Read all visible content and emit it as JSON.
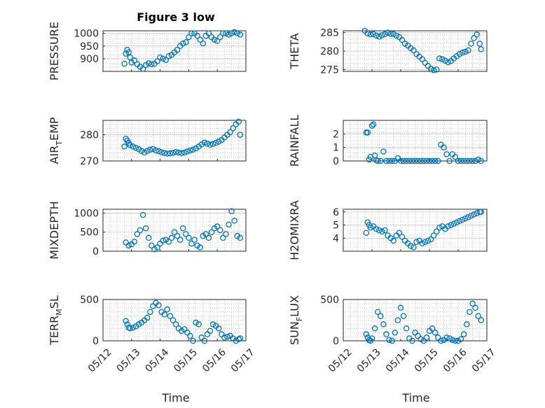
{
  "figure": {
    "title": "Figure 3 low",
    "xlabel": "Time"
  },
  "colors": {
    "marker": "#0072BD",
    "grid": "#b0b0b0",
    "axis": "#262626"
  },
  "chart_data": [
    {
      "type": "scatter",
      "ylabel": "PRESSURE",
      "ylim": [
        850,
        1010
      ],
      "yticks": [
        900,
        950,
        1000
      ],
      "xlim": [
        "05/12",
        "05/17"
      ],
      "xtick_labels": [
        "05/12",
        "05/13",
        "05/14",
        "05/15",
        "05/16",
        "05/17"
      ],
      "x": [
        "05/12 18:00",
        "05/12 19:12",
        "05/12 20:24",
        "05/12 21:36",
        "05/12 22:48",
        "05/13 00:00",
        "05/13 02:24",
        "05/13 04:48",
        "05/13 07:12",
        "05/13 09:36",
        "05/13 12:00",
        "05/13 14:24",
        "05/13 16:48",
        "05/13 19:12",
        "05/13 21:36",
        "05/14 00:00",
        "05/14 02:24",
        "05/14 04:48",
        "05/14 07:12",
        "05/14 09:36",
        "05/14 12:00",
        "05/14 14:24",
        "05/14 16:48",
        "05/14 19:12",
        "05/14 21:36",
        "05/15 00:00",
        "05/15 02:24",
        "05/15 04:48",
        "05/15 07:12",
        "05/15 09:36",
        "05/15 12:00",
        "05/15 14:24",
        "05/15 16:48",
        "05/15 19:12",
        "05/15 21:36",
        "05/16 00:00",
        "05/16 02:24",
        "05/16 04:48",
        "05/16 07:12",
        "05/16 09:36",
        "05/16 12:00",
        "05/16 14:24",
        "05/16 16:48",
        "05/16 19:12"
      ],
      "y": [
        880,
        920,
        935,
        925,
        905,
        885,
        893,
        878,
        868,
        860,
        875,
        882,
        878,
        880,
        890,
        905,
        900,
        895,
        910,
        915,
        925,
        935,
        950,
        960,
        965,
        985,
        1000,
        1000,
        990,
        975,
        960,
        990,
        1000,
        985,
        975,
        970,
        985,
        1000,
        1000,
        995,
        1000,
        1005,
        1000,
        995
      ]
    },
    {
      "type": "scatter",
      "ylabel": "THETA",
      "ylim": [
        274.5,
        285.5
      ],
      "yticks": [
        275,
        280,
        285
      ],
      "xlim": [
        "05/12",
        "05/17"
      ],
      "xtick_labels": [
        "05/12",
        "05/13",
        "05/14",
        "05/15",
        "05/16",
        "05/17"
      ],
      "x": [
        "05/12 18:00",
        "05/12 20:24",
        "05/12 22:48",
        "05/13 01:12",
        "05/13 03:36",
        "05/13 06:00",
        "05/13 08:24",
        "05/13 10:48",
        "05/13 13:12",
        "05/13 15:36",
        "05/13 18:00",
        "05/13 20:24",
        "05/13 22:48",
        "05/14 01:12",
        "05/14 03:36",
        "05/14 06:00",
        "05/14 08:24",
        "05/14 10:48",
        "05/14 13:12",
        "05/14 15:36",
        "05/14 18:00",
        "05/14 20:24",
        "05/14 22:48",
        "05/15 01:12",
        "05/15 03:36",
        "05/15 06:00",
        "05/15 08:24",
        "05/15 10:48",
        "05/15 13:12",
        "05/15 15:36",
        "05/15 18:00",
        "05/15 20:24",
        "05/15 22:48",
        "05/16 01:12",
        "05/16 03:36",
        "05/16 06:00",
        "05/16 08:24",
        "05/16 10:48",
        "05/16 13:12",
        "05/16 15:36",
        "05/16 18:00",
        "05/16 19:12"
      ],
      "y": [
        285.5,
        284.8,
        284.5,
        284.6,
        284.2,
        283.9,
        284.3,
        284.6,
        285.0,
        284.7,
        284.6,
        284.2,
        283.8,
        283.0,
        282.0,
        281.5,
        280.8,
        280.2,
        279.2,
        278.5,
        277.8,
        276.8,
        276.0,
        275.2,
        274.8,
        275.0,
        278.0,
        277.8,
        277.4,
        277.0,
        277.3,
        278.0,
        278.6,
        279.2,
        279.6,
        279.8,
        280.2,
        282.0,
        283.5,
        284.5,
        282.0,
        280.5
      ]
    },
    {
      "type": "scatter",
      "ylabel": "AIR_TEMP",
      "ylim": [
        270,
        285.5
      ],
      "yticks": [
        270,
        280
      ],
      "xlim": [
        "05/12",
        "05/17"
      ],
      "xtick_labels": [
        "05/12",
        "05/13",
        "05/14",
        "05/15",
        "05/16",
        "05/17"
      ],
      "x": [
        "05/12 18:00",
        "05/12 19:12",
        "05/12 20:24",
        "05/12 21:36",
        "05/12 22:48",
        "05/13 01:12",
        "05/13 03:36",
        "05/13 06:00",
        "05/13 08:24",
        "05/13 10:48",
        "05/13 13:12",
        "05/13 15:36",
        "05/13 18:00",
        "05/13 20:24",
        "05/13 22:48",
        "05/14 01:12",
        "05/14 03:36",
        "05/14 06:00",
        "05/14 08:24",
        "05/14 10:48",
        "05/14 13:12",
        "05/14 15:36",
        "05/14 18:00",
        "05/14 20:24",
        "05/14 22:48",
        "05/15 01:12",
        "05/15 03:36",
        "05/15 06:00",
        "05/15 08:24",
        "05/15 10:48",
        "05/15 13:12",
        "05/15 15:36",
        "05/15 18:00",
        "05/15 20:24",
        "05/15 22:48",
        "05/16 01:12",
        "05/16 03:36",
        "05/16 06:00",
        "05/16 08:24",
        "05/16 10:48",
        "05/16 13:12",
        "05/16 15:36",
        "05/16 18:00",
        "05/16 19:12"
      ],
      "y": [
        275.5,
        278.5,
        277.8,
        276.8,
        276.0,
        275.5,
        275.0,
        274.5,
        273.8,
        273.2,
        273.8,
        274.3,
        274.6,
        274.0,
        273.7,
        273.3,
        273.0,
        272.8,
        272.9,
        273.1,
        273.4,
        273.2,
        273.0,
        273.2,
        273.6,
        274.0,
        274.3,
        274.8,
        275.5,
        276.3,
        277.0,
        276.6,
        276.2,
        276.5,
        276.9,
        277.4,
        278.0,
        279.0,
        280.0,
        281.0,
        282.5,
        284.0,
        285.0,
        280.0
      ]
    },
    {
      "type": "scatter",
      "ylabel": "RAINFALL",
      "ylim": [
        0,
        3
      ],
      "yticks": [
        0,
        1,
        2
      ],
      "xlim": [
        "05/12",
        "05/17"
      ],
      "xtick_labels": [
        "05/12",
        "05/13",
        "05/14",
        "05/15",
        "05/16",
        "05/17"
      ],
      "x": [
        "05/12 19:12",
        "05/12 20:24",
        "05/12 21:36",
        "05/12 22:48",
        "05/13 00:00",
        "05/13 01:12",
        "05/13 02:24",
        "05/13 03:36",
        "05/13 04:48",
        "05/13 07:12",
        "05/13 09:36",
        "05/13 12:00",
        "05/13 14:24",
        "05/13 16:48",
        "05/13 19:12",
        "05/13 21:36",
        "05/14 00:00",
        "05/14 02:24",
        "05/14 04:48",
        "05/14 07:12",
        "05/14 09:36",
        "05/14 12:00",
        "05/14 14:24",
        "05/14 16:48",
        "05/14 19:12",
        "05/14 21:36",
        "05/15 00:00",
        "05/15 02:24",
        "05/15 04:48",
        "05/15 07:12",
        "05/15 09:36",
        "05/15 12:00",
        "05/15 14:24",
        "05/15 16:48",
        "05/15 19:12",
        "05/15 21:36",
        "05/16 00:00",
        "05/16 02:24",
        "05/16 04:48",
        "05/16 07:12",
        "05/16 09:36",
        "05/16 12:00",
        "05/16 14:24",
        "05/16 16:48",
        "05/16 19:12"
      ],
      "y": [
        2.1,
        2.1,
        0.1,
        0.3,
        2.6,
        2.7,
        0.4,
        0.05,
        0.0,
        0.0,
        0.7,
        0.0,
        0.0,
        0.0,
        0.0,
        0.2,
        0.0,
        0.0,
        0.0,
        0.0,
        0.0,
        0.0,
        0.0,
        0.0,
        0.0,
        0.0,
        0.0,
        0.0,
        0.0,
        0.0,
        1.2,
        1.0,
        0.5,
        0.0,
        0.5,
        0.3,
        0.0,
        0.0,
        0.0,
        0.0,
        0.0,
        0.0,
        0.0,
        0.1,
        0.0
      ]
    },
    {
      "type": "scatter",
      "ylabel": "MIXDEPTH",
      "ylim": [
        0,
        1100
      ],
      "yticks": [
        0,
        500,
        1000
      ],
      "xlim": [
        "05/12",
        "05/17"
      ],
      "xtick_labels": [
        "05/12",
        "05/13",
        "05/14",
        "05/15",
        "05/16",
        "05/17"
      ],
      "x": [
        "05/12 19:12",
        "05/12 21:36",
        "05/13 00:00",
        "05/13 02:24",
        "05/13 04:48",
        "05/13 07:12",
        "05/13 09:36",
        "05/13 12:00",
        "05/13 14:24",
        "05/13 16:48",
        "05/13 19:12",
        "05/13 21:36",
        "05/14 00:00",
        "05/14 02:24",
        "05/14 04:48",
        "05/14 07:12",
        "05/14 09:36",
        "05/14 12:00",
        "05/14 14:24",
        "05/14 16:48",
        "05/14 19:12",
        "05/14 21:36",
        "05/15 00:00",
        "05/15 02:24",
        "05/15 04:48",
        "05/15 07:12",
        "05/15 09:36",
        "05/15 12:00",
        "05/15 14:24",
        "05/15 16:48",
        "05/15 19:12",
        "05/15 21:36",
        "05/16 00:00",
        "05/16 02:24",
        "05/16 04:48",
        "05/16 07:12",
        "05/16 09:36",
        "05/16 12:00",
        "05/16 14:24",
        "05/16 16:48",
        "05/16 19:12"
      ],
      "y": [
        230,
        150,
        180,
        250,
        450,
        550,
        950,
        600,
        350,
        150,
        50,
        100,
        200,
        280,
        300,
        250,
        350,
        500,
        400,
        300,
        600,
        450,
        350,
        200,
        300,
        150,
        100,
        400,
        450,
        350,
        500,
        600,
        650,
        550,
        350,
        450,
        700,
        1050,
        800,
        400,
        350
      ]
    },
    {
      "type": "scatter",
      "ylabel": "H2OMIXRA",
      "ylim": [
        3,
        6.2
      ],
      "yticks": [
        4,
        5,
        6
      ],
      "xlim": [
        "05/12",
        "05/17"
      ],
      "xtick_labels": [
        "05/12",
        "05/13",
        "05/14",
        "05/15",
        "05/16",
        "05/17"
      ],
      "x": [
        "05/12 19:12",
        "05/12 20:24",
        "05/12 21:36",
        "05/12 22:48",
        "05/13 01:12",
        "05/13 03:36",
        "05/13 06:00",
        "05/13 08:24",
        "05/13 10:48",
        "05/13 13:12",
        "05/13 15:36",
        "05/13 18:00",
        "05/13 20:24",
        "05/13 22:48",
        "05/14 01:12",
        "05/14 03:36",
        "05/14 06:00",
        "05/14 08:24",
        "05/14 10:48",
        "05/14 13:12",
        "05/14 15:36",
        "05/14 18:00",
        "05/14 20:24",
        "05/14 22:48",
        "05/15 01:12",
        "05/15 03:36",
        "05/15 06:00",
        "05/15 08:24",
        "05/15 10:48",
        "05/15 13:12",
        "05/15 15:36",
        "05/15 18:00",
        "05/15 20:24",
        "05/15 22:48",
        "05/16 01:12",
        "05/16 03:36",
        "05/16 06:00",
        "05/16 08:24",
        "05/16 10:48",
        "05/16 13:12",
        "05/16 15:36",
        "05/16 18:00",
        "05/16 19:12"
      ],
      "y": [
        4.4,
        5.2,
        5.0,
        4.8,
        4.9,
        4.7,
        4.6,
        4.5,
        4.6,
        4.2,
        4.0,
        3.8,
        4.2,
        4.4,
        4.1,
        3.8,
        3.6,
        3.4,
        3.3,
        3.7,
        3.8,
        3.6,
        3.7,
        3.8,
        3.9,
        4.2,
        4.5,
        4.8,
        4.9,
        4.7,
        4.9,
        5.0,
        5.1,
        5.2,
        5.3,
        5.4,
        5.5,
        5.6,
        5.7,
        5.8,
        5.9,
        6.0,
        6.0
      ]
    },
    {
      "type": "scatter",
      "ylabel": "TERR_MSL",
      "ylim": [
        0,
        500
      ],
      "yticks": [
        0,
        500
      ],
      "xlim": [
        "05/12",
        "05/17"
      ],
      "xtick_labels": [
        "05/12",
        "05/13",
        "05/14",
        "05/15",
        "05/16",
        "05/17"
      ],
      "x": [
        "05/12 19:12",
        "05/12 20:24",
        "05/12 21:36",
        "05/12 22:48",
        "05/13 01:12",
        "05/13 03:36",
        "05/13 06:00",
        "05/13 08:24",
        "05/13 10:48",
        "05/13 13:12",
        "05/13 15:36",
        "05/13 18:00",
        "05/13 20:24",
        "05/13 22:48",
        "05/14 01:12",
        "05/14 03:36",
        "05/14 06:00",
        "05/14 08:24",
        "05/14 10:48",
        "05/14 13:12",
        "05/14 15:36",
        "05/14 18:00",
        "05/14 20:24",
        "05/14 22:48",
        "05/15 01:12",
        "05/15 03:36",
        "05/15 06:00",
        "05/15 08:24",
        "05/15 10:48",
        "05/15 13:12",
        "05/15 15:36",
        "05/15 18:00",
        "05/15 20:24",
        "05/15 22:48",
        "05/16 01:12",
        "05/16 03:36",
        "05/16 06:00",
        "05/16 08:24",
        "05/16 10:48",
        "05/16 13:12",
        "05/16 15:36",
        "05/16 18:00",
        "05/16 19:12"
      ],
      "y": [
        240,
        200,
        160,
        150,
        160,
        175,
        200,
        220,
        250,
        280,
        350,
        420,
        460,
        430,
        350,
        320,
        380,
        300,
        250,
        200,
        150,
        120,
        140,
        100,
        60,
        0,
        220,
        200,
        40,
        0,
        80,
        120,
        200,
        180,
        150,
        80,
        40,
        50,
        60,
        30,
        0,
        20,
        30
      ]
    },
    {
      "type": "scatter",
      "ylabel": "SUN_FLUX",
      "ylim": [
        0,
        500
      ],
      "yticks": [
        0,
        500
      ],
      "xlim": [
        "05/12",
        "05/17"
      ],
      "xtick_labels": [
        "05/12",
        "05/13",
        "05/14",
        "05/15",
        "05/16",
        "05/17"
      ],
      "x": [
        "05/12 19:12",
        "05/12 20:24",
        "05/12 21:36",
        "05/12 22:48",
        "05/13 00:00",
        "05/13 02:24",
        "05/13 04:48",
        "05/13 07:12",
        "05/13 09:36",
        "05/13 12:00",
        "05/13 14:24",
        "05/13 16:48",
        "05/13 19:12",
        "05/13 21:36",
        "05/14 00:00",
        "05/14 02:24",
        "05/14 04:48",
        "05/14 07:12",
        "05/14 09:36",
        "05/14 12:00",
        "05/14 14:24",
        "05/14 16:48",
        "05/14 19:12",
        "05/14 21:36",
        "05/15 00:00",
        "05/15 02:24",
        "05/15 04:48",
        "05/15 07:12",
        "05/15 09:36",
        "05/15 12:00",
        "05/15 14:24",
        "05/15 16:48",
        "05/15 19:12",
        "05/15 21:36",
        "05/16 00:00",
        "05/16 02:24",
        "05/16 04:48",
        "05/16 07:12",
        "05/16 09:36",
        "05/16 12:00",
        "05/16 14:24",
        "05/16 16:48",
        "05/16 19:12"
      ],
      "y": [
        80,
        40,
        10,
        0,
        30,
        150,
        350,
        300,
        200,
        80,
        10,
        0,
        100,
        250,
        400,
        300,
        150,
        30,
        0,
        100,
        60,
        20,
        0,
        40,
        120,
        150,
        100,
        40,
        0,
        10,
        40,
        30,
        10,
        0,
        0,
        20,
        80,
        200,
        350,
        450,
        400,
        300,
        250
      ]
    }
  ]
}
